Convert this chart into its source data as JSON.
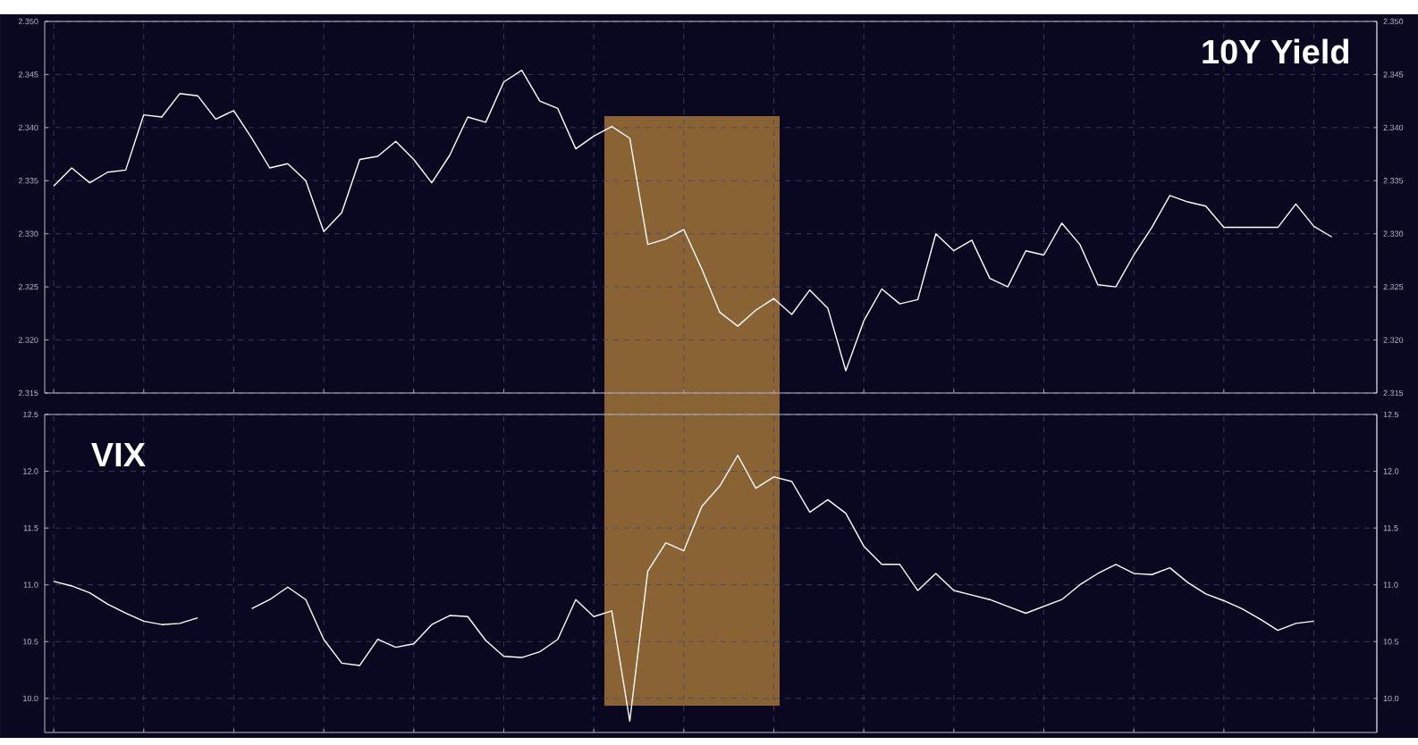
{
  "chart_data": [
    {
      "type": "line",
      "title": "10Y Yield",
      "categories": [
        null,
        null,
        null,
        null,
        null,
        null,
        null,
        null,
        null,
        null,
        null,
        null,
        null,
        null,
        null,
        null,
        null,
        null,
        null,
        null,
        null,
        null,
        null,
        null,
        null,
        null,
        null,
        null,
        null,
        null,
        null,
        null,
        null,
        null,
        null,
        null,
        null,
        null,
        null,
        null,
        null,
        null,
        null,
        null,
        null,
        null,
        null,
        null,
        null,
        null,
        null,
        null,
        null,
        null,
        null,
        null,
        null,
        null,
        null,
        null,
        null,
        null,
        null,
        null,
        null,
        null,
        null,
        null,
        null,
        null,
        null,
        null,
        null,
        null
      ],
      "ylim": [
        2.315,
        2.35
      ],
      "yticks": [
        {
          "value": 2.315,
          "label": "2.315"
        },
        {
          "value": 2.32,
          "label": "2.320"
        },
        {
          "value": 2.325,
          "label": "2.325"
        },
        {
          "value": 2.33,
          "label": "2.330"
        },
        {
          "value": 2.335,
          "label": "2.335"
        },
        {
          "value": 2.34,
          "label": "2.340"
        },
        {
          "value": 2.345,
          "label": "2.345"
        },
        {
          "value": 2.35,
          "label": "2.350"
        }
      ],
      "y2lim": [
        2.315,
        2.35
      ],
      "y2ticks": [
        {
          "value": 2.315,
          "label": "2.315"
        },
        {
          "value": 2.32,
          "label": "2.320"
        },
        {
          "value": 2.325,
          "label": "2.325"
        },
        {
          "value": 2.33,
          "label": "2.330"
        },
        {
          "value": 2.335,
          "label": "2.335"
        },
        {
          "value": 2.34,
          "label": "2.340"
        },
        {
          "value": 2.345,
          "label": "2.345"
        },
        {
          "value": 2.35,
          "label": "2.350"
        }
      ],
      "tick_labels": "y",
      "grid": true,
      "series": [
        {
          "color": "#ffffff",
          "values": [
            2.3345,
            2.3362,
            2.3348,
            2.3358,
            2.336,
            2.3412,
            2.341,
            2.3432,
            2.343,
            2.3408,
            2.3416,
            2.339,
            2.3362,
            2.3366,
            2.335,
            2.3302,
            2.332,
            2.337,
            2.3373,
            2.3387,
            2.337,
            2.3348,
            2.3374,
            2.341,
            2.3405,
            2.3443,
            2.3454,
            2.3425,
            2.3418,
            2.338,
            2.3392,
            2.3401,
            2.339,
            2.329,
            2.3295,
            2.3304,
            2.3267,
            2.3226,
            2.3213,
            2.3228,
            2.3239,
            2.3224,
            2.3247,
            2.323,
            2.3171,
            2.3218,
            2.3248,
            2.3234,
            2.3238,
            2.33,
            2.3284,
            2.3294,
            2.3258,
            2.325,
            2.3284,
            2.328,
            2.331,
            2.329,
            2.3252,
            2.325,
            2.328,
            2.3306,
            2.3336,
            2.333,
            2.3326,
            2.3306,
            2.3306,
            2.3306,
            2.3306,
            2.3328,
            2.3307,
            2.3297,
            null,
            null
          ]
        }
      ]
    },
    {
      "type": "line",
      "title": "VIX",
      "categories": [
        null,
        null,
        null,
        null,
        null,
        null,
        null,
        null,
        null,
        null,
        null,
        null,
        null,
        null,
        null,
        null,
        null,
        null,
        null,
        null,
        null,
        null,
        null,
        null,
        null,
        null,
        null,
        null,
        null,
        null,
        null,
        null,
        null,
        null,
        null,
        null,
        null,
        null,
        null,
        null,
        null,
        null,
        null,
        null,
        null,
        null,
        null,
        null,
        null,
        null,
        null,
        null,
        null,
        null,
        null,
        null,
        null,
        null,
        null,
        null,
        null,
        null,
        null,
        null,
        null,
        null,
        null,
        null,
        null,
        null,
        null,
        null,
        null,
        null
      ],
      "ylim": [
        9.7,
        12.5
      ],
      "yticks": [
        {
          "value": 10,
          "label": "10.0"
        },
        {
          "value": 10.5,
          "label": "10.5"
        },
        {
          "value": 11,
          "label": "11.0"
        },
        {
          "value": 11.5,
          "label": "11.5"
        },
        {
          "value": 12,
          "label": "12.0"
        },
        {
          "value": 12.5,
          "label": "12.5"
        }
      ],
      "y2lim": [
        9.7,
        12.5
      ],
      "y2ticks": [
        {
          "value": 10,
          "label": "10.0"
        },
        {
          "value": 10.5,
          "label": "10.5"
        },
        {
          "value": 11,
          "label": "11.0"
        },
        {
          "value": 11.5,
          "label": "11.5"
        },
        {
          "value": 12,
          "label": "12.0"
        },
        {
          "value": 12.5,
          "label": "12.5"
        }
      ],
      "tick_labels": "y",
      "grid": true,
      "series": [
        {
          "color": "#ffffff",
          "values": [
            11.03,
            10.99,
            10.93,
            10.83,
            10.75,
            10.68,
            10.65,
            10.66,
            10.71,
            null,
            null,
            10.79,
            10.87,
            10.98,
            10.87,
            10.52,
            10.31,
            10.29,
            10.52,
            10.45,
            10.48,
            10.65,
            10.73,
            10.72,
            10.51,
            10.37,
            10.36,
            10.41,
            10.52,
            10.87,
            10.72,
            10.77,
            9.8,
            11.12,
            11.37,
            11.3,
            11.69,
            11.87,
            12.14,
            11.85,
            11.95,
            11.91,
            11.64,
            11.75,
            11.63,
            11.34,
            11.18,
            11.18,
            10.95,
            11.1,
            10.95,
            10.91,
            10.87,
            10.81,
            10.75,
            10.81,
            10.87,
            11.0,
            11.1,
            11.18,
            11.1,
            11.09,
            11.15,
            11.02,
            10.92,
            10.86,
            10.79,
            10.7,
            10.6,
            10.66,
            10.68,
            null,
            null,
            null
          ]
        }
      ]
    }
  ]
}
